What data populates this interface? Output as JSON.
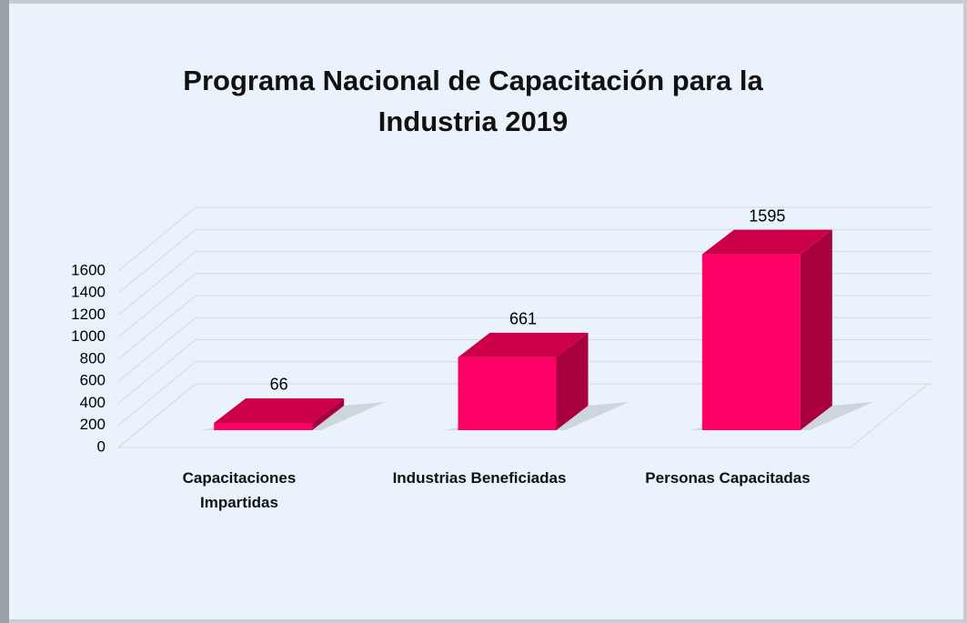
{
  "chart_data": {
    "type": "bar3d",
    "title": "Programa Nacional de Capacitación para la Industria 2019",
    "categories": [
      "Capacitaciones Impartidas",
      "Industrias Beneficiadas",
      "Personas Capacitadas"
    ],
    "values": [
      66,
      661,
      1595
    ],
    "color": "#ff0066",
    "ylim": [
      0,
      1600
    ],
    "yticks": [
      0,
      200,
      400,
      600,
      800,
      1000,
      1200,
      1400,
      1600
    ],
    "grid": true
  }
}
